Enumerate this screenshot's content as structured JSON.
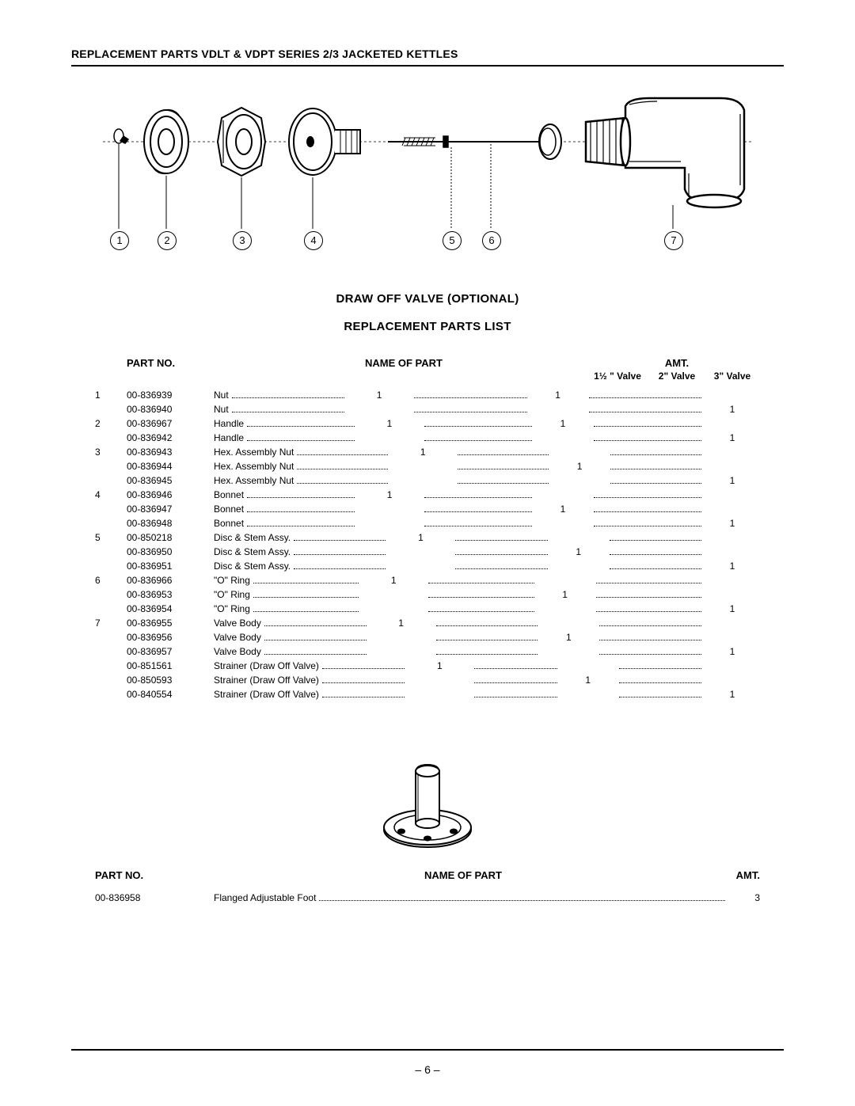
{
  "header": "REPLACEMENT PARTS VDLT & VDPT SERIES 2/3 JACKETED  KETTLES",
  "title1": "DRAW OFF VALVE (OPTIONAL)",
  "title2": "REPLACEMENT PARTS LIST",
  "page_number": "– 6 –",
  "diagram": {
    "callouts": [
      "1",
      "2",
      "3",
      "4",
      "5",
      "6",
      "7"
    ]
  },
  "table1": {
    "columns": {
      "partno": "PART NO.",
      "name": "NAME OF PART",
      "amt": "AMT.",
      "v1": "1½ \" Valve",
      "v2": "2\" Valve",
      "v3": "3\" Valve"
    },
    "rows": [
      {
        "idx": "1",
        "part": "00-836939",
        "name": "Nut",
        "v1": "1",
        "v2": "1",
        "v3": ""
      },
      {
        "idx": "",
        "part": "00-836940",
        "name": "Nut",
        "v1": "",
        "v2": "",
        "v3": "1"
      },
      {
        "idx": "2",
        "part": "00-836967",
        "name": "Handle",
        "v1": "1",
        "v2": "1",
        "v3": ""
      },
      {
        "idx": "",
        "part": "00-836942",
        "name": "Handle",
        "v1": "",
        "v2": "",
        "v3": "1"
      },
      {
        "idx": "3",
        "part": "00-836943",
        "name": "Hex. Assembly Nut",
        "v1": "1",
        "v2": "",
        "v3": ""
      },
      {
        "idx": "",
        "part": "00-836944",
        "name": "Hex. Assembly Nut",
        "v1": "",
        "v2": "1",
        "v3": ""
      },
      {
        "idx": "",
        "part": "00-836945",
        "name": "Hex. Assembly Nut",
        "v1": "",
        "v2": "",
        "v3": "1"
      },
      {
        "idx": "4",
        "part": "00-836946",
        "name": "Bonnet",
        "v1": "1",
        "v2": "",
        "v3": ""
      },
      {
        "idx": "",
        "part": "00-836947",
        "name": "Bonnet",
        "v1": "",
        "v2": "1",
        "v3": ""
      },
      {
        "idx": "",
        "part": "00-836948",
        "name": "Bonnet",
        "v1": "",
        "v2": "",
        "v3": "1"
      },
      {
        "idx": "5",
        "part": "00-850218",
        "name": "Disc & Stem Assy.",
        "v1": "1",
        "v2": "",
        "v3": ""
      },
      {
        "idx": "",
        "part": "00-836950",
        "name": "Disc & Stem Assy.",
        "v1": "",
        "v2": "1",
        "v3": ""
      },
      {
        "idx": "",
        "part": "00-836951",
        "name": "Disc & Stem Assy.",
        "v1": "",
        "v2": "",
        "v3": "1"
      },
      {
        "idx": "6",
        "part": "00-836966",
        "name": "\"O\" Ring",
        "v1": "1",
        "v2": "",
        "v3": ""
      },
      {
        "idx": "",
        "part": "00-836953",
        "name": "\"O\" Ring",
        "v1": "",
        "v2": "1",
        "v3": ""
      },
      {
        "idx": "",
        "part": "00-836954",
        "name": "\"O\" Ring",
        "v1": "",
        "v2": "",
        "v3": "1"
      },
      {
        "idx": "7",
        "part": "00-836955",
        "name": "Valve Body",
        "v1": "1",
        "v2": "",
        "v3": ""
      },
      {
        "idx": "",
        "part": "00-836956",
        "name": "Valve Body",
        "v1": "",
        "v2": "1",
        "v3": ""
      },
      {
        "idx": "",
        "part": "00-836957",
        "name": "Valve Body",
        "v1": "",
        "v2": "",
        "v3": "1"
      },
      {
        "idx": "",
        "part": "00-851561",
        "name": "Strainer (Draw Off Valve)",
        "v1": "1",
        "v2": "",
        "v3": ""
      },
      {
        "idx": "",
        "part": "00-850593",
        "name": "Strainer (Draw Off Valve)",
        "v1": "",
        "v2": "1",
        "v3": ""
      },
      {
        "idx": "",
        "part": "00-840554",
        "name": "Strainer (Draw Off Valve)",
        "v1": "",
        "v2": "",
        "v3": "1"
      }
    ]
  },
  "table2": {
    "columns": {
      "partno": "PART NO.",
      "name": "NAME OF PART",
      "amt": "AMT."
    },
    "row": {
      "part": "00-836958",
      "name": "Flanged Adjustable Foot",
      "amt": "3"
    }
  }
}
